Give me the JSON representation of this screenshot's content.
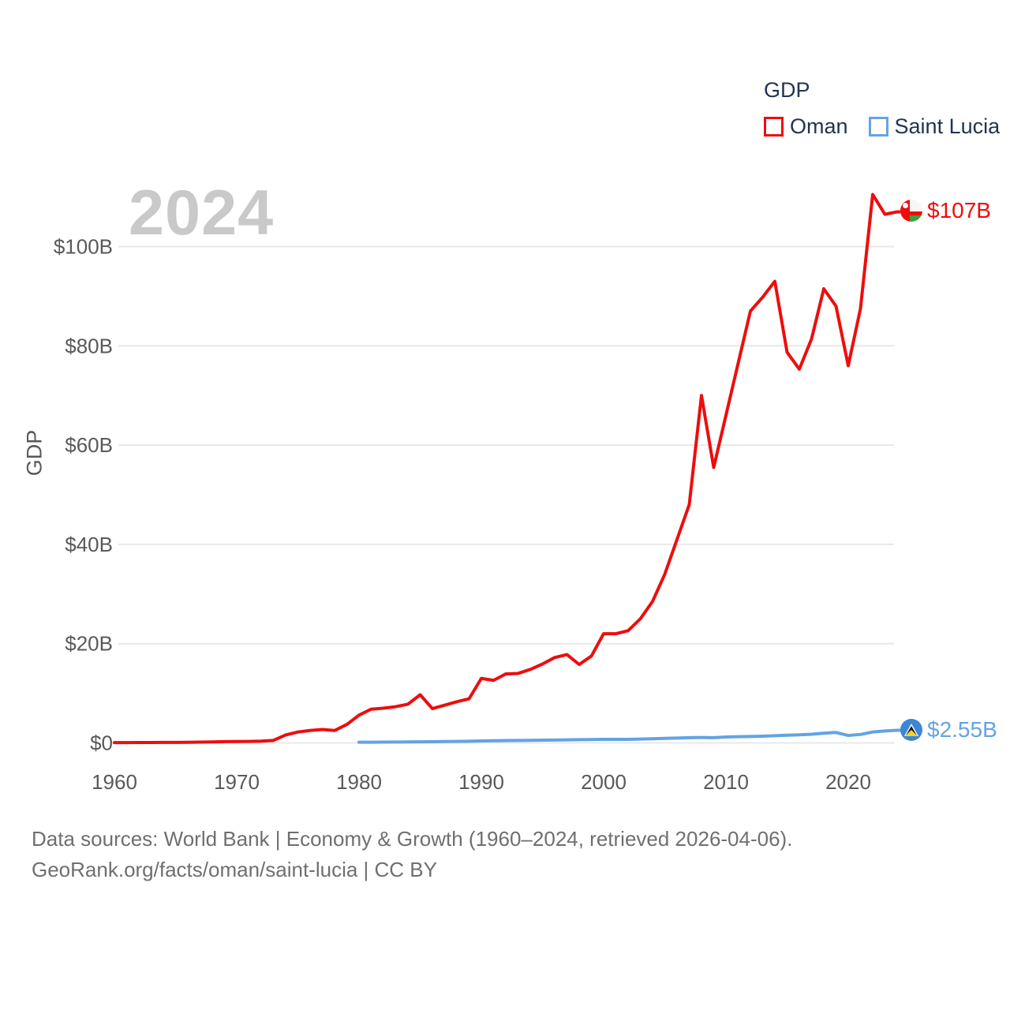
{
  "colors": {
    "oman_red": "#ee0d0d",
    "saint_lucia_blue": "#64a3e3",
    "saint_lucia_flag_blue": "#3d86d8",
    "oman_flag_green": "#3f9e3f",
    "grid": "#e8e8e8",
    "axis_text": "#595959",
    "legend_text": "#24344f",
    "watermark_text": "#c9c9c9",
    "footer_text": "#6f6f6f"
  },
  "legend": {
    "title": "GDP",
    "items": [
      {
        "label": "Oman",
        "color": "#ee0d0d"
      },
      {
        "label": "Saint Lucia",
        "color": "#64a3e3"
      }
    ]
  },
  "watermark": "2024",
  "axis": {
    "y_title": "GDP",
    "y_tick_labels": [
      "$0",
      "$20B",
      "$40B",
      "$60B",
      "$80B",
      "$100B"
    ],
    "x_tick_labels": [
      "1960",
      "1970",
      "1980",
      "1990",
      "2000",
      "2010",
      "2020"
    ]
  },
  "end_labels": {
    "oman": "$107B",
    "saint_lucia": "$2.55B"
  },
  "footer": {
    "line1": "Data sources: World Bank | Economy & Growth (1960–2024, retrieved 2026-04-06).",
    "line2": "GeoRank.org/facts/oman/saint-lucia | CC BY"
  },
  "chart_data": {
    "type": "line",
    "title": "GDP",
    "ylabel": "GDP",
    "unit": "billions of USD",
    "x_range": [
      1960,
      2024
    ],
    "ylim_billions": [
      0,
      110.5
    ],
    "y_ticks_billions": [
      0,
      20,
      40,
      60,
      80,
      100
    ],
    "x_ticks": [
      1960,
      1970,
      1980,
      1990,
      2000,
      2010,
      2020
    ],
    "grid": "horizontal-only",
    "legend_position": "top-right",
    "series": [
      {
        "name": "Oman",
        "color": "#ee0d0d",
        "start_year": 1960,
        "end_year": 2024,
        "end_label": "$107B",
        "values_billions": [
          0.05,
          0.06,
          0.07,
          0.08,
          0.09,
          0.1,
          0.12,
          0.15,
          0.2,
          0.25,
          0.27,
          0.3,
          0.35,
          0.5,
          1.6,
          2.2,
          2.5,
          2.7,
          2.5,
          3.7,
          5.6,
          6.8,
          7,
          7.3,
          7.8,
          9.7,
          6.9,
          7.6,
          8.3,
          8.9,
          13,
          12.6,
          13.9,
          14,
          14.8,
          15.9,
          17.2,
          17.8,
          15.8,
          17.5,
          22,
          22,
          22.6,
          25,
          28.5,
          34,
          41,
          48,
          70,
          55.5,
          66,
          76.5,
          87,
          89.8,
          93,
          78.7,
          75.3,
          81.4,
          91.5,
          88,
          76,
          87.5,
          110.5,
          106.5,
          107
        ]
      },
      {
        "name": "Saint Lucia",
        "color": "#64a3e3",
        "start_year": 1980,
        "end_year": 2024,
        "end_label": "$2.55B",
        "values_billions": [
          0.13,
          0.14,
          0.16,
          0.17,
          0.19,
          0.21,
          0.24,
          0.27,
          0.3,
          0.34,
          0.4,
          0.43,
          0.47,
          0.49,
          0.52,
          0.55,
          0.58,
          0.61,
          0.65,
          0.68,
          0.72,
          0.71,
          0.72,
          0.77,
          0.84,
          0.91,
          0.98,
          1.05,
          1.1,
          1.05,
          1.2,
          1.26,
          1.3,
          1.35,
          1.45,
          1.55,
          1.63,
          1.75,
          1.95,
          2.1,
          1.5,
          1.7,
          2.2,
          2.4,
          2.55
        ]
      }
    ]
  }
}
